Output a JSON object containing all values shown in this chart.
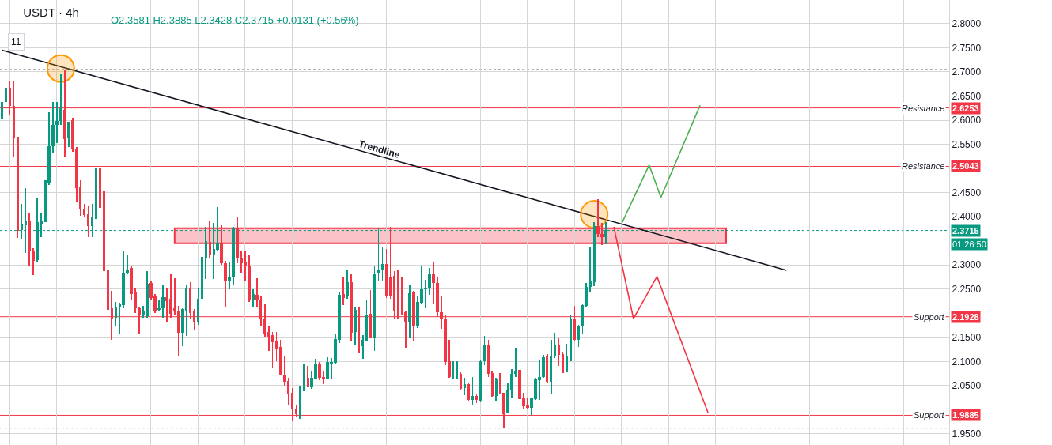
{
  "chart_data": {
    "type": "candlestick",
    "title": "USDT · 4h",
    "subtitle": "O2.3581 H2.3885 L2.3428 C2.3715 +0.0131 (+0.56%)",
    "annotations": [
      "Trendline",
      "11",
      "01:26:50",
      {
        "text": "2.6253",
        "y": 2.6253
      },
      {
        "text": "2.5043",
        "y": 2.5043
      },
      {
        "text": "2.1928",
        "y": 2.1928
      },
      {
        "text": "1.9885",
        "y": 1.9885
      },
      {
        "text": "2.3715",
        "y": 2.3715
      }
    ],
    "categories": [
      null,
      null,
      null,
      null,
      null,
      null,
      null,
      null,
      null,
      null,
      null,
      null,
      null,
      null,
      null,
      null,
      null,
      null,
      null,
      null,
      null,
      null,
      null,
      null,
      null,
      null,
      null,
      null,
      null,
      null,
      null,
      null,
      null,
      null,
      null,
      null,
      null,
      null,
      null,
      null,
      null,
      null,
      null,
      null,
      null,
      null,
      null,
      null,
      null,
      null,
      null,
      null,
      null,
      null,
      null,
      null,
      null,
      null,
      null,
      null,
      null,
      null,
      null,
      null,
      null,
      null,
      null,
      null,
      null,
      null,
      null,
      null,
      null,
      null,
      null,
      null,
      null,
      null,
      null,
      null,
      null,
      null,
      null,
      null,
      null,
      null,
      null,
      null,
      null,
      null,
      null,
      null,
      null,
      null,
      null,
      null,
      null,
      null,
      null,
      null,
      null,
      null,
      null,
      null,
      null,
      null,
      null,
      null,
      null,
      null,
      null,
      null,
      null,
      null,
      null,
      null,
      null,
      null,
      null,
      null,
      null,
      null,
      null,
      null,
      null,
      null,
      null,
      null,
      null,
      null,
      null,
      null,
      null,
      null,
      null,
      null,
      null,
      null,
      null,
      null,
      null,
      null,
      null,
      null,
      null,
      null,
      null,
      null,
      null,
      null,
      null,
      null,
      null,
      null,
      null,
      null,
      null,
      null,
      null,
      null,
      null,
      null,
      null,
      null,
      null,
      null,
      null,
      null,
      null,
      null,
      null,
      null,
      null,
      null,
      null,
      null,
      null,
      null,
      null,
      null,
      null,
      null,
      null,
      null,
      null,
      null,
      null,
      null,
      null,
      null,
      null,
      null,
      null,
      null,
      null,
      null,
      null,
      null,
      null,
      null,
      null,
      null,
      null,
      null,
      null,
      null,
      null,
      null,
      null,
      null,
      null,
      null,
      null,
      null,
      null,
      null,
      null,
      null,
      null,
      null,
      null,
      null,
      null,
      null,
      null,
      null,
      null,
      null,
      null,
      null,
      null,
      null,
      null,
      null,
      null,
      null,
      null,
      null,
      null,
      null,
      null,
      null
    ],
    "ohlc": [
      [
        2.602,
        2.685,
        2.598,
        2.638
      ],
      [
        2.638,
        2.697,
        2.615,
        2.667
      ],
      [
        2.667,
        2.682,
        2.612,
        2.63
      ],
      [
        2.63,
        2.682,
        2.525,
        2.562
      ],
      [
        2.566,
        2.566,
        2.356,
        2.371
      ],
      [
        2.373,
        2.427,
        2.355,
        2.384
      ],
      [
        2.382,
        2.459,
        2.325,
        2.39
      ],
      [
        2.39,
        2.408,
        2.299,
        2.33
      ],
      [
        2.33,
        2.335,
        2.279,
        2.309
      ],
      [
        2.31,
        2.44,
        2.305,
        2.389
      ],
      [
        2.386,
        2.408,
        2.358,
        2.39
      ],
      [
        2.389,
        2.476,
        2.389,
        2.476
      ],
      [
        2.471,
        2.617,
        2.465,
        2.546
      ],
      [
        2.546,
        2.638,
        2.533,
        2.59
      ],
      [
        2.59,
        2.638,
        2.553,
        2.598
      ],
      [
        2.598,
        2.697,
        2.59,
        2.625
      ],
      [
        2.621,
        2.705,
        2.525,
        2.561
      ],
      [
        2.564,
        2.597,
        2.544,
        2.597
      ],
      [
        2.6,
        2.605,
        2.535,
        2.541
      ],
      [
        2.54,
        2.545,
        2.432,
        2.459
      ],
      [
        2.463,
        2.476,
        2.402,
        2.415
      ],
      [
        2.415,
        2.427,
        2.398,
        2.404
      ],
      [
        2.405,
        2.423,
        2.358,
        2.381
      ],
      [
        2.381,
        2.427,
        2.358,
        2.399
      ],
      [
        2.395,
        2.517,
        2.39,
        2.502
      ],
      [
        2.502,
        2.508,
        2.415,
        2.418
      ],
      [
        2.453,
        2.465,
        2.248,
        2.287
      ],
      [
        2.289,
        2.3,
        2.165,
        2.207
      ],
      [
        2.21,
        2.246,
        2.145,
        2.187
      ],
      [
        2.191,
        2.224,
        2.173,
        2.214
      ],
      [
        2.214,
        2.222,
        2.156,
        2.219
      ],
      [
        2.217,
        2.328,
        2.21,
        2.284
      ],
      [
        2.284,
        2.32,
        2.28,
        2.291
      ],
      [
        2.294,
        2.297,
        2.227,
        2.24
      ],
      [
        2.243,
        2.253,
        2.2,
        2.21
      ],
      [
        2.21,
        2.214,
        2.158,
        2.197
      ],
      [
        2.197,
        2.215,
        2.19,
        2.205
      ],
      [
        2.194,
        2.287,
        2.19,
        2.261
      ],
      [
        2.262,
        2.268,
        2.228,
        2.232
      ],
      [
        2.237,
        2.24,
        2.2,
        2.205
      ],
      [
        2.207,
        2.228,
        2.203,
        2.211
      ],
      [
        2.21,
        2.258,
        2.191,
        2.233
      ],
      [
        2.233,
        2.251,
        2.181,
        2.225
      ],
      [
        2.23,
        2.281,
        2.19,
        2.199
      ],
      [
        2.21,
        2.273,
        2.195,
        2.204
      ],
      [
        2.205,
        2.215,
        2.11,
        2.16
      ],
      [
        2.16,
        2.21,
        2.131,
        2.209
      ],
      [
        2.205,
        2.258,
        2.153,
        2.253
      ],
      [
        2.253,
        2.264,
        2.189,
        2.201
      ],
      [
        2.204,
        2.208,
        2.165,
        2.181
      ],
      [
        2.181,
        2.253,
        2.176,
        2.23
      ],
      [
        2.23,
        2.328,
        2.225,
        2.317
      ],
      [
        2.314,
        2.379,
        2.271,
        2.35
      ],
      [
        2.348,
        2.392,
        2.314,
        2.32
      ],
      [
        2.32,
        2.387,
        2.271,
        2.333
      ],
      [
        2.332,
        2.42,
        2.33,
        2.345
      ],
      [
        2.345,
        2.382,
        2.3,
        2.304
      ],
      [
        2.304,
        2.308,
        2.214,
        2.268
      ],
      [
        2.268,
        2.305,
        2.25,
        2.276
      ],
      [
        2.276,
        2.379,
        2.258,
        2.377
      ],
      [
        2.376,
        2.399,
        2.304,
        2.314
      ],
      [
        2.314,
        2.33,
        2.282,
        2.304
      ],
      [
        2.305,
        2.33,
        2.268,
        2.297
      ],
      [
        2.299,
        2.32,
        2.224,
        2.229
      ],
      [
        2.229,
        2.25,
        2.214,
        2.24
      ],
      [
        2.238,
        2.273,
        2.212,
        2.227
      ],
      [
        2.228,
        2.235,
        2.173,
        2.189
      ],
      [
        2.189,
        2.219,
        2.151,
        2.158
      ],
      [
        2.161,
        2.173,
        2.122,
        2.151
      ],
      [
        2.155,
        2.161,
        2.088,
        2.14
      ],
      [
        2.142,
        2.161,
        2.101,
        2.127
      ],
      [
        2.13,
        2.145,
        2.071,
        2.073
      ],
      [
        2.073,
        2.11,
        2.05,
        2.058
      ],
      [
        2.06,
        2.066,
        2.011,
        2.034
      ],
      [
        2.035,
        2.045,
        1.976,
        2.001
      ],
      [
        2.003,
        2.011,
        1.984,
        1.991
      ],
      [
        1.993,
        2.05,
        1.981,
        2.043
      ],
      [
        2.04,
        2.096,
        2.038,
        2.066
      ],
      [
        2.066,
        2.091,
        2.047,
        2.048
      ],
      [
        2.048,
        2.079,
        2.043,
        2.066
      ],
      [
        2.065,
        2.106,
        2.063,
        2.094
      ],
      [
        2.094,
        2.099,
        2.061,
        2.066
      ],
      [
        2.067,
        2.081,
        2.053,
        2.065
      ],
      [
        2.065,
        2.109,
        2.063,
        2.099
      ],
      [
        2.097,
        2.107,
        2.065,
        2.099
      ],
      [
        2.097,
        2.156,
        2.095,
        2.147
      ],
      [
        2.145,
        2.245,
        2.138,
        2.238
      ],
      [
        2.24,
        2.274,
        2.217,
        2.232
      ],
      [
        2.235,
        2.289,
        2.23,
        2.264
      ],
      [
        2.264,
        2.281,
        2.142,
        2.16
      ],
      [
        2.161,
        2.214,
        2.134,
        2.207
      ],
      [
        2.207,
        2.214,
        2.119,
        2.132
      ],
      [
        2.132,
        2.155,
        2.106,
        2.145
      ],
      [
        2.143,
        2.227,
        2.142,
        2.197
      ],
      [
        2.199,
        2.248,
        2.148,
        2.15
      ],
      [
        2.15,
        2.299,
        2.122,
        2.281
      ],
      [
        2.282,
        2.376,
        2.268,
        2.291
      ],
      [
        2.291,
        2.338,
        2.266,
        2.302
      ],
      [
        2.302,
        2.333,
        2.232,
        2.235
      ],
      [
        2.276,
        2.379,
        2.23,
        2.237
      ],
      [
        2.277,
        2.287,
        2.189,
        2.205
      ],
      [
        2.207,
        2.289,
        2.187,
        2.202
      ],
      [
        2.206,
        2.276,
        2.196,
        2.199
      ],
      [
        2.202,
        2.205,
        2.129,
        2.181
      ],
      [
        2.181,
        2.26,
        2.15,
        2.242
      ],
      [
        2.243,
        2.246,
        2.142,
        2.173
      ],
      [
        2.174,
        2.235,
        2.17,
        2.224
      ],
      [
        2.222,
        2.299,
        2.22,
        2.25
      ],
      [
        2.251,
        2.269,
        2.21,
        2.253
      ],
      [
        2.251,
        2.294,
        2.238,
        2.281
      ],
      [
        2.281,
        2.305,
        2.219,
        2.263
      ],
      [
        2.263,
        2.276,
        2.192,
        2.202
      ],
      [
        2.202,
        2.235,
        2.168,
        2.189
      ],
      [
        2.189,
        2.195,
        2.092,
        2.099
      ],
      [
        2.101,
        2.145,
        2.066,
        2.068
      ],
      [
        2.068,
        2.101,
        2.065,
        2.073
      ],
      [
        2.069,
        2.101,
        2.063,
        2.072
      ],
      [
        2.075,
        2.078,
        2.04,
        2.043
      ],
      [
        2.045,
        2.066,
        2.03,
        2.053
      ],
      [
        2.053,
        2.055,
        2.018,
        2.02
      ],
      [
        2.02,
        2.068,
        2.011,
        2.029
      ],
      [
        2.029,
        2.031,
        2.013,
        2.02
      ],
      [
        2.019,
        2.104,
        2.017,
        2.101
      ],
      [
        2.101,
        2.153,
        2.093,
        2.133
      ],
      [
        2.133,
        2.145,
        2.068,
        2.075
      ],
      [
        2.076,
        2.079,
        2.027,
        2.029
      ],
      [
        2.029,
        2.066,
        2.019,
        2.063
      ],
      [
        2.063,
        2.076,
        2.032,
        2.035
      ],
      [
        2.035,
        2.035,
        1.961,
        1.991
      ],
      [
        1.993,
        2.056,
        1.993,
        2.042
      ],
      [
        2.042,
        2.084,
        2.025,
        2.074
      ],
      [
        2.074,
        2.129,
        2.068,
        2.081
      ],
      [
        2.083,
        2.083,
        2.022,
        2.022
      ],
      [
        2.024,
        2.035,
        2.001,
        2.007
      ],
      [
        2.009,
        2.025,
        2.001,
        2.004
      ],
      [
        2.004,
        2.026,
        1.989,
        2.024
      ],
      [
        2.022,
        2.066,
        2.021,
        2.063
      ],
      [
        2.061,
        2.104,
        2.02,
        2.068
      ],
      [
        2.068,
        2.114,
        2.066,
        2.109
      ],
      [
        2.11,
        2.116,
        2.054,
        2.058
      ],
      [
        2.058,
        2.145,
        2.034,
        2.11
      ],
      [
        2.11,
        2.16,
        2.107,
        2.135
      ],
      [
        2.135,
        2.148,
        2.091,
        2.114
      ],
      [
        2.116,
        2.12,
        2.076,
        2.076
      ],
      [
        2.078,
        2.137,
        2.077,
        2.112
      ],
      [
        2.101,
        2.196,
        2.1,
        2.189
      ],
      [
        2.187,
        2.215,
        2.142,
        2.145
      ],
      [
        2.145,
        2.176,
        2.13,
        2.174
      ],
      [
        2.173,
        2.22,
        2.156,
        2.217
      ],
      [
        2.215,
        2.263,
        2.213,
        2.254
      ],
      [
        2.254,
        2.338,
        2.245,
        2.266
      ],
      [
        2.264,
        2.389,
        2.256,
        2.381
      ],
      [
        2.381,
        2.436,
        2.358,
        2.364
      ],
      [
        2.364,
        2.387,
        2.341,
        2.358
      ],
      [
        2.3581,
        2.3885,
        2.3428,
        2.3715
      ],
      null,
      null,
      null,
      null,
      null,
      null,
      null,
      null,
      null,
      null,
      null,
      null,
      null,
      null,
      null,
      null,
      null,
      null,
      null,
      null,
      null,
      null,
      null,
      null,
      null,
      null,
      null,
      null,
      null,
      null,
      null,
      null,
      null,
      null,
      null,
      null,
      null,
      null,
      null,
      null,
      null,
      null,
      null,
      null,
      null,
      null,
      null,
      null,
      null,
      null,
      null,
      null,
      null,
      null,
      null,
      null,
      null,
      null,
      null,
      null,
      null,
      null,
      null,
      null,
      null,
      null,
      null,
      null,
      null,
      null,
      null,
      null,
      null,
      null,
      null,
      null,
      null,
      null,
      null,
      null,
      null,
      null,
      null,
      null,
      null,
      null,
      null
    ],
    "colors": [
      "#089981",
      "#089981",
      "#f23645",
      "#f23645",
      "#f23645",
      "#089981",
      "#089981",
      "#f23645",
      "#f23645",
      "#089981",
      "#089981",
      "#089981",
      "#089981",
      "#089981",
      "#089981",
      "#089981",
      "#f23645",
      "#089981",
      "#f23645",
      "#f23645",
      "#f23645",
      "#f23645",
      "#f23645",
      "#089981",
      "#089981",
      "#f23645",
      "#f23645",
      "#f23645",
      "#f23645",
      "#089981",
      "#089981",
      "#089981",
      "#089981",
      "#f23645",
      "#f23645",
      "#f23645",
      "#089981",
      "#089981",
      "#f23645",
      "#f23645",
      "#089981",
      "#089981",
      "#f23645",
      "#f23645",
      "#f23645",
      "#f23645",
      "#089981",
      "#089981",
      "#f23645",
      "#f23645",
      "#089981",
      "#089981",
      "#089981",
      "#f23645",
      "#089981",
      "#089981",
      "#f23645",
      "#f23645",
      "#089981",
      "#089981",
      "#f23645",
      "#f23645",
      "#f23645",
      "#f23645",
      "#089981",
      "#f23645",
      "#f23645",
      "#f23645",
      "#f23645",
      "#f23645",
      "#f23645",
      "#f23645",
      "#f23645",
      "#f23645",
      "#f23645",
      "#f23645",
      "#089981",
      "#089981",
      "#f23645",
      "#089981",
      "#089981",
      "#f23645",
      "#f23645",
      "#089981",
      "#089981",
      "#089981",
      "#089981",
      "#f23645",
      "#089981",
      "#f23645",
      "#089981",
      "#f23645",
      "#089981",
      "#089981",
      "#f23645",
      "#089981",
      "#089981",
      "#089981",
      "#f23645",
      "#f23645",
      "#f23645",
      "#f23645",
      "#f23645",
      "#f23645",
      "#089981",
      "#f23645",
      "#089981",
      "#089981",
      "#089981",
      "#089981",
      "#f23645",
      "#f23645",
      "#f23645",
      "#f23645",
      "#f23645",
      "#089981",
      "#089981",
      "#f23645",
      "#089981",
      "#f23645",
      "#089981",
      "#f23645",
      "#089981",
      "#089981",
      "#f23645",
      "#f23645",
      "#089981",
      "#f23645",
      "#f23645",
      "#089981",
      "#089981",
      "#089981",
      "#f23645",
      "#f23645",
      "#f23645",
      "#089981",
      "#089981",
      "#089981",
      "#089981",
      "#f23645",
      "#089981",
      "#089981",
      "#f23645",
      "#f23645",
      "#089981",
      "#089981",
      "#f23645",
      "#089981",
      "#089981",
      "#089981",
      "#089981",
      "#089981",
      "#f23645",
      "#f23645",
      "#089981",
      null,
      null,
      null,
      null,
      null,
      null,
      null,
      null,
      null,
      null,
      null,
      null,
      null,
      null,
      null,
      null,
      null,
      null,
      null,
      null,
      null,
      null,
      null,
      null,
      null,
      null,
      null,
      null,
      null,
      null,
      null,
      null,
      null,
      null,
      null,
      null,
      null,
      null,
      null,
      null,
      null,
      null,
      null,
      null,
      null,
      null,
      null,
      null,
      null,
      null,
      null,
      null,
      null,
      null,
      null,
      null,
      null,
      null,
      null,
      null,
      null,
      null,
      null,
      null,
      null,
      null,
      null,
      null,
      null,
      null,
      null,
      null,
      null,
      null,
      null,
      null,
      null,
      null,
      null,
      null,
      null,
      null,
      null,
      null,
      null,
      null,
      null
    ],
    "series": [
      {
        "type": "line",
        "color": "#131722",
        "values": [
          2.745,
          null,
          null,
          null,
          null,
          null,
          null,
          null,
          null,
          null,
          null,
          null,
          null,
          null,
          null,
          null,
          null,
          null,
          null,
          null,
          null,
          null,
          null,
          null,
          null,
          null,
          null,
          null,
          null,
          null,
          null,
          null,
          null,
          null,
          null,
          null,
          null,
          null,
          null,
          null,
          null,
          null,
          null,
          null,
          null,
          null,
          null,
          null,
          null,
          null,
          null,
          null,
          null,
          null,
          null,
          null,
          null,
          null,
          null,
          null,
          null,
          null,
          null,
          null,
          null,
          null,
          null,
          null,
          null,
          null,
          null,
          null,
          null,
          null,
          null,
          null,
          null,
          null,
          null,
          null,
          null,
          null,
          null,
          null,
          null,
          null,
          null,
          null,
          null,
          null,
          null,
          null,
          null,
          null,
          null,
          null,
          null,
          null,
          null,
          null,
          null,
          null,
          null,
          null,
          null,
          null,
          null,
          null,
          null,
          null,
          null,
          null,
          null,
          null,
          null,
          null,
          null,
          null,
          null,
          null,
          null,
          null,
          null,
          null,
          null,
          null,
          null,
          null,
          null,
          null,
          null,
          null,
          null,
          null,
          null,
          null,
          null,
          null,
          null,
          null,
          null,
          null,
          null,
          null,
          null,
          null,
          null,
          null,
          null,
          null,
          null,
          null,
          null,
          null,
          null,
          null,
          null,
          null,
          null,
          null,
          null,
          null,
          null,
          null,
          null,
          null,
          null,
          null,
          null,
          null,
          null,
          null,
          null,
          null,
          null,
          null,
          null,
          null,
          null,
          null,
          null,
          null,
          null,
          null,
          null,
          null,
          null,
          null,
          null,
          null,
          null,
          null,
          null,
          null,
          null,
          null,
          null,
          null,
          null,
          null,
          2.289,
          null,
          null,
          null,
          null,
          null,
          null,
          null,
          null,
          null,
          null,
          null,
          null,
          null,
          null,
          null,
          null,
          null,
          null,
          null,
          null,
          null,
          null,
          null,
          null,
          null,
          null,
          null,
          null,
          null,
          null,
          null,
          null,
          null,
          null,
          null,
          null,
          null,
          null,
          null,
          null,
          null
        ]
      },
      {
        "type": "line",
        "color": "#4caf50",
        "values": [
          null,
          null,
          null,
          null,
          null,
          null,
          null,
          null,
          null,
          null,
          null,
          null,
          null,
          null,
          null,
          null,
          null,
          null,
          null,
          null,
          null,
          null,
          null,
          null,
          null,
          null,
          null,
          null,
          null,
          null,
          null,
          null,
          null,
          null,
          null,
          null,
          null,
          null,
          null,
          null,
          null,
          null,
          null,
          null,
          null,
          null,
          null,
          null,
          null,
          null,
          null,
          null,
          null,
          null,
          null,
          null,
          null,
          null,
          null,
          null,
          null,
          null,
          null,
          null,
          null,
          null,
          null,
          null,
          null,
          null,
          null,
          null,
          null,
          null,
          null,
          null,
          null,
          null,
          null,
          null,
          null,
          null,
          null,
          null,
          null,
          null,
          null,
          null,
          null,
          null,
          null,
          null,
          null,
          null,
          null,
          null,
          null,
          null,
          null,
          null,
          null,
          null,
          null,
          null,
          null,
          null,
          null,
          null,
          null,
          null,
          null,
          null,
          null,
          null,
          null,
          null,
          null,
          null,
          null,
          null,
          null,
          null,
          null,
          null,
          null,
          null,
          null,
          null,
          null,
          null,
          null,
          null,
          null,
          null,
          null,
          null,
          null,
          null,
          null,
          null,
          null,
          null,
          null,
          null,
          null,
          null,
          null,
          null,
          null,
          null,
          null,
          null,
          null,
          null,
          null,
          null,
          null,
          null,
          2.386,
          null,
          null,
          null,
          null,
          null,
          null,
          2.507,
          null,
          null,
          2.44,
          null,
          null,
          null,
          null,
          null,
          null,
          null,
          null,
          null,
          2.631,
          null,
          null,
          null,
          null,
          null,
          null,
          null,
          null,
          null,
          null,
          null,
          null,
          null,
          null,
          null,
          null,
          null,
          null,
          null,
          null,
          null,
          null,
          null,
          null,
          null,
          null,
          null,
          null,
          null,
          null,
          null,
          null,
          null,
          null,
          null,
          null,
          null,
          null,
          null,
          null,
          null,
          null,
          null,
          null,
          null,
          null,
          null,
          null,
          null,
          null,
          null,
          null,
          null,
          null,
          null,
          null,
          null,
          null,
          null,
          null,
          null,
          null,
          null
        ]
      },
      {
        "type": "line",
        "color": "#f23645",
        "values": [
          null,
          null,
          null,
          null,
          null,
          null,
          null,
          null,
          null,
          null,
          null,
          null,
          null,
          null,
          null,
          null,
          null,
          null,
          null,
          null,
          null,
          null,
          null,
          null,
          null,
          null,
          null,
          null,
          null,
          null,
          null,
          null,
          null,
          null,
          null,
          null,
          null,
          null,
          null,
          null,
          null,
          null,
          null,
          null,
          null,
          null,
          null,
          null,
          null,
          null,
          null,
          null,
          null,
          null,
          null,
          null,
          null,
          null,
          null,
          null,
          null,
          null,
          null,
          null,
          null,
          null,
          null,
          null,
          null,
          null,
          null,
          null,
          null,
          null,
          null,
          null,
          null,
          null,
          null,
          null,
          null,
          null,
          null,
          null,
          null,
          null,
          null,
          null,
          null,
          null,
          null,
          null,
          null,
          null,
          null,
          null,
          null,
          null,
          null,
          null,
          null,
          null,
          null,
          null,
          null,
          null,
          null,
          null,
          null,
          null,
          null,
          null,
          null,
          null,
          null,
          null,
          null,
          null,
          null,
          null,
          null,
          null,
          null,
          null,
          null,
          null,
          null,
          null,
          null,
          null,
          null,
          null,
          null,
          null,
          null,
          null,
          null,
          null,
          null,
          null,
          null,
          null,
          null,
          null,
          null,
          null,
          null,
          null,
          null,
          null,
          null,
          null,
          null,
          null,
          null,
          null,
          2.379,
          null,
          null,
          null,
          null,
          2.189,
          null,
          null,
          null,
          null,
          null,
          2.276,
          null,
          null,
          null,
          null,
          null,
          null,
          null,
          null,
          null,
          null,
          null,
          null,
          1.994,
          null,
          null,
          null,
          null,
          null,
          null,
          null,
          null,
          null,
          null,
          null,
          null,
          null,
          null,
          null,
          null,
          null,
          null,
          null,
          null,
          null,
          null,
          null,
          null,
          null,
          null,
          null,
          null,
          null,
          null,
          null,
          null,
          null,
          null,
          null,
          null,
          null,
          null,
          null,
          null,
          null,
          null,
          null,
          null,
          null,
          null,
          null,
          null,
          null,
          null,
          null,
          null,
          null,
          null,
          null,
          null,
          null,
          null,
          null,
          null,
          null
        ]
      },
      {
        "type": "scatter",
        "color": "#ff9800",
        "marker": "circle",
        "values": [
          null,
          null,
          null,
          null,
          null,
          null,
          null,
          null,
          null,
          null,
          null,
          null,
          null,
          null,
          null,
          2.707,
          null,
          null,
          null,
          null,
          null,
          null,
          null,
          null,
          null,
          null,
          null,
          null,
          null,
          null,
          null,
          null,
          null,
          null,
          null,
          null,
          null,
          null,
          null,
          null,
          null,
          null,
          null,
          null,
          null,
          null,
          null,
          null,
          null,
          null,
          null,
          null,
          null,
          null,
          null,
          null,
          null,
          null,
          null,
          null,
          null,
          null,
          null,
          null,
          null,
          null,
          null,
          null,
          null,
          null,
          null,
          null,
          null,
          null,
          null,
          null,
          null,
          null,
          null,
          null,
          null,
          null,
          null,
          null,
          null,
          null,
          null,
          null,
          null,
          null,
          null,
          null,
          null,
          null,
          null,
          null,
          null,
          null,
          null,
          null,
          null,
          null,
          null,
          null,
          null,
          null,
          null,
          null,
          null,
          null,
          null,
          null,
          null,
          null,
          null,
          null,
          null,
          null,
          null,
          null,
          null,
          null,
          null,
          null,
          null,
          null,
          null,
          null,
          null,
          null,
          null,
          null,
          null,
          null,
          null,
          null,
          null,
          null,
          null,
          null,
          null,
          null,
          null,
          null,
          null,
          null,
          null,
          null,
          null,
          null,
          null,
          2.405,
          null,
          null,
          null,
          null,
          null,
          null,
          null,
          null,
          null,
          null,
          null,
          null,
          null,
          null,
          null,
          null,
          null,
          null,
          null,
          null,
          null,
          null,
          null,
          null,
          null,
          null,
          null,
          null,
          null,
          null,
          null,
          null,
          null,
          null,
          null,
          null,
          null,
          null,
          null,
          null,
          null,
          null,
          null,
          null,
          null,
          null,
          null,
          null,
          null,
          null,
          null,
          null,
          null,
          null,
          null,
          null,
          null,
          null,
          null,
          null,
          null,
          null,
          null,
          null,
          null,
          null,
          null,
          null,
          null,
          null,
          null,
          null,
          null,
          null,
          null,
          null,
          null,
          null,
          null,
          null,
          null,
          null,
          null,
          null,
          null,
          null,
          null,
          null,
          null,
          null
        ]
      }
    ],
    "ylim": [
      1.927,
      2.849
    ],
    "yticks": [
      {
        "value": 1.95,
        "label": "1.9500"
      },
      {
        "value": 2.05,
        "label": "2.0500"
      },
      {
        "value": 2.1,
        "label": "2.1000"
      },
      {
        "value": 2.15,
        "label": "2.1500"
      },
      {
        "value": 2.25,
        "label": "2.2500"
      },
      {
        "value": 2.3,
        "label": "2.3000"
      },
      {
        "value": 2.4,
        "label": "2.4000"
      },
      {
        "value": 2.45,
        "label": "2.4500"
      },
      {
        "value": 2.55,
        "label": "2.5500"
      },
      {
        "value": 2.6,
        "label": "2.6000"
      },
      {
        "value": 2.65,
        "label": "2.6500"
      },
      {
        "value": 2.7,
        "label": "2.7000"
      },
      {
        "value": 2.75,
        "label": "2.7500"
      },
      {
        "value": 2.8,
        "label": "2.8000"
      }
    ],
    "ref_lines": [
      {
        "axis": "y",
        "value": 2.6253,
        "label": "Resistance",
        "color": "#f23645",
        "line_style": "solid"
      },
      {
        "axis": "y",
        "value": 2.5043,
        "label": "Resistance",
        "color": "#f23645",
        "line_style": "solid"
      },
      {
        "axis": "y",
        "value": 2.1928,
        "label": "Support",
        "color": "#f23645",
        "line_style": "solid"
      },
      {
        "axis": "y",
        "value": 1.9885,
        "label": "Support",
        "color": "#f23645",
        "line_style": "solid"
      },
      {
        "axis": "y",
        "value": 2.3715,
        "color": "#089981",
        "line_style": "dotted"
      },
      {
        "axis": "y",
        "value": 2.705,
        "color": "#787b86",
        "line_style": "dotted"
      },
      {
        "axis": "y",
        "value": 1.962,
        "color": "#787b86",
        "line_style": "dotted"
      }
    ],
    "bands": [
      {
        "axis": "y",
        "from": 2.345,
        "to": 2.376,
        "color": "#f23645"
      }
    ],
    "grid": true,
    "tick_labels": "y"
  }
}
